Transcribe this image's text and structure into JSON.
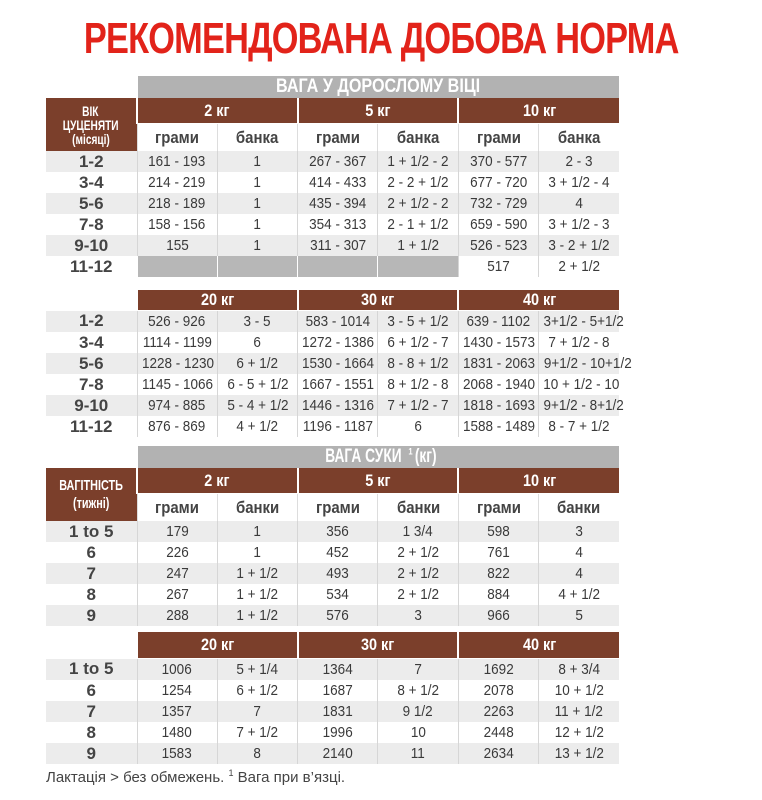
{
  "title": "РЕКОМЕНДОВАНА ДОБОВА НОРМА",
  "colors": {
    "title": "#e2231a",
    "header_brown": "#7b3f2b",
    "header_gray": "#b2b2b2",
    "stripe": "#ececec"
  },
  "puppy": {
    "section_title": "ВАГА У ДОРОСЛОМУ ВІЦІ",
    "row_header": [
      "ВІК",
      "ЦУЦЕНЯТИ",
      "(місяці)"
    ],
    "sub_headers": [
      "грами",
      "банка",
      "грами",
      "банка",
      "грами",
      "банка"
    ],
    "tables": [
      {
        "weights": [
          "2 кг",
          "5 кг",
          "10 кг"
        ],
        "rows": [
          {
            "label": "1-2",
            "cells": [
              "161 - 193",
              "1",
              "267 - 367",
              "1 + 1/2 - 2",
              "370 - 577",
              "2 - 3"
            ]
          },
          {
            "label": "3-4",
            "cells": [
              "214 - 219",
              "1",
              "414 - 433",
              "2 - 2 + 1/2",
              "677 - 720",
              "3 + 1/2 - 4"
            ]
          },
          {
            "label": "5-6",
            "cells": [
              "218 - 189",
              "1",
              "435 - 394",
              "2 + 1/2 - 2",
              "732 - 729",
              "4"
            ]
          },
          {
            "label": "7-8",
            "cells": [
              "158 - 156",
              "1",
              "354 - 313",
              "2 - 1 + 1/2",
              "659 - 590",
              "3 + 1/2 - 3"
            ]
          },
          {
            "label": "9-10",
            "cells": [
              "155",
              "1",
              "311 - 307",
              "1 + 1/2",
              "526 - 523",
              "3 - 2 + 1/2"
            ]
          },
          {
            "label": "11-12",
            "cells": [
              "",
              "",
              "",
              "",
              "517",
              "2 + 1/2"
            ]
          }
        ]
      },
      {
        "weights": [
          "20 кг",
          "30 кг",
          "40 кг"
        ],
        "rows": [
          {
            "label": "1-2",
            "cells": [
              "526 - 926",
              "3 - 5",
              "583 - 1014",
              "3 - 5 + 1/2",
              "639 - 1102",
              "3+1/2 - 5+1/2"
            ]
          },
          {
            "label": "3-4",
            "cells": [
              "1114 - 1199",
              "6",
              "1272 - 1386",
              "6 + 1/2 - 7",
              "1430 - 1573",
              "7 + 1/2 - 8"
            ]
          },
          {
            "label": "5-6",
            "cells": [
              "1228 - 1230",
              "6 + 1/2",
              "1530 - 1664",
              "8 - 8 + 1/2",
              "1831 - 2063",
              "9+1/2 - 10+1/2"
            ]
          },
          {
            "label": "7-8",
            "cells": [
              "1145 - 1066",
              "6 - 5 + 1/2",
              "1667 - 1551",
              "8 + 1/2 - 8",
              "2068 - 1940",
              "10 + 1/2 - 10"
            ]
          },
          {
            "label": "9-10",
            "cells": [
              "974 - 885",
              "5 - 4 + 1/2",
              "1446 - 1316",
              "7 + 1/2 - 7",
              "1818 - 1693",
              "9+1/2 - 8+1/2"
            ]
          },
          {
            "label": "11-12",
            "cells": [
              "876 - 869",
              "4 + 1/2",
              "1196 - 1187",
              "6",
              "1588 - 1489",
              "8 - 7 + 1/2"
            ]
          }
        ]
      }
    ]
  },
  "bitch": {
    "section_title": "ВАГА СУКИ",
    "section_sup": "1",
    "section_unit": " (кг)",
    "row_header": [
      "ВАГІТНІСТЬ",
      "(тижні)"
    ],
    "sub_headers": [
      "грами",
      "банки",
      "грами",
      "банки",
      "грами",
      "банки"
    ],
    "tables": [
      {
        "weights": [
          "2 кг",
          "5 кг",
          "10 кг"
        ],
        "rows": [
          {
            "label": "1 to 5",
            "cells": [
              "179",
              "1",
              "356",
              "1 3/4",
              "598",
              "3"
            ]
          },
          {
            "label": "6",
            "cells": [
              "226",
              "1",
              "452",
              "2 + 1/2",
              "761",
              "4"
            ]
          },
          {
            "label": "7",
            "cells": [
              "247",
              "1 + 1/2",
              "493",
              "2 + 1/2",
              "822",
              "4"
            ]
          },
          {
            "label": "8",
            "cells": [
              "267",
              "1 + 1/2",
              "534",
              "2 + 1/2",
              "884",
              "4 + 1/2"
            ]
          },
          {
            "label": "9",
            "cells": [
              "288",
              "1 + 1/2",
              "576",
              "3",
              "966",
              "5"
            ]
          }
        ]
      },
      {
        "weights": [
          "20 кг",
          "30 кг",
          "40 кг"
        ],
        "rows": [
          {
            "label": "1 to 5",
            "cells": [
              "1006",
              "5 + 1/4",
              "1364",
              "7",
              "1692",
              "8 + 3/4"
            ]
          },
          {
            "label": "6",
            "cells": [
              "1254",
              "6 + 1/2",
              "1687",
              "8 + 1/2",
              "2078",
              "10 + 1/2"
            ]
          },
          {
            "label": "7",
            "cells": [
              "1357",
              "7",
              "1831",
              "9 1/2",
              "2263",
              "11 + 1/2"
            ]
          },
          {
            "label": "8",
            "cells": [
              "1480",
              "7 + 1/2",
              "1996",
              "10",
              "2448",
              "12 + 1/2"
            ]
          },
          {
            "label": "9",
            "cells": [
              "1583",
              "8",
              "2140",
              "11",
              "2634",
              "13 + 1/2"
            ]
          }
        ]
      }
    ]
  },
  "footnote": {
    "text1": "Лактація > без обмежень. ",
    "sup": "1",
    "text2": " Вага при в’язці."
  }
}
